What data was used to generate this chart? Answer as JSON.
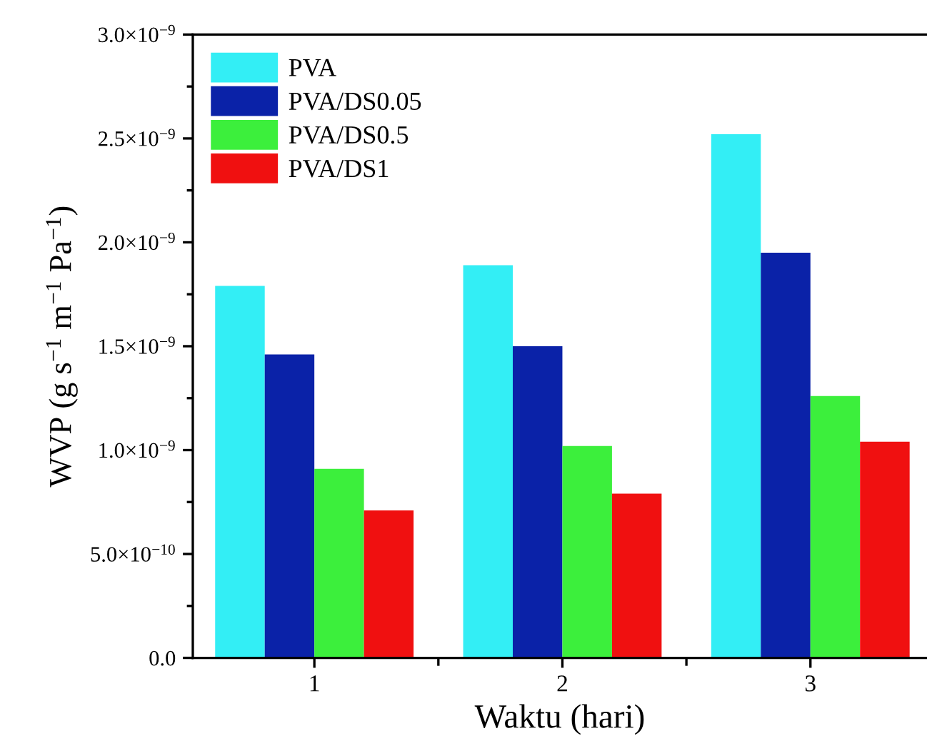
{
  "chart_data": {
    "type": "bar",
    "xlabel": "Waktu (hari)",
    "ylabel": "WVP (g s$^{−1}$ m$^{−1}$ Pa$^{−1}$)",
    "categories": [
      "1",
      "2",
      "3"
    ],
    "series": [
      {
        "name": "PVA",
        "color": "#33eef5",
        "values": [
          1.79e-09,
          1.89e-09,
          2.52e-09
        ]
      },
      {
        "name": "PVA/DS0.05",
        "color": "#0a22a8",
        "values": [
          1.46e-09,
          1.5e-09,
          1.95e-09
        ]
      },
      {
        "name": "PVA/DS0.5",
        "color": "#3cef3c",
        "values": [
          9.1e-10,
          1.02e-09,
          1.26e-09
        ]
      },
      {
        "name": "PVA/DS1",
        "color": "#f01010",
        "values": [
          7.1e-10,
          7.9e-10,
          1.04e-09
        ]
      }
    ],
    "ylim": [
      0,
      3e-09
    ],
    "yticks": [
      {
        "value": 0,
        "label": "0.0"
      },
      {
        "value": 2.5e-10,
        "label": null
      },
      {
        "value": 5e-10,
        "label": "5.0×10$^{−10}$"
      },
      {
        "value": 7.5e-10,
        "label": null
      },
      {
        "value": 1e-09,
        "label": "1.0×10$^{−9}$"
      },
      {
        "value": 1.25e-09,
        "label": null
      },
      {
        "value": 1.5e-09,
        "label": "1.5×10$^{−9}$"
      },
      {
        "value": 1.75e-09,
        "label": null
      },
      {
        "value": 2e-09,
        "label": "2.0×10$^{−9}$"
      },
      {
        "value": 2.25e-09,
        "label": null
      },
      {
        "value": 2.5e-09,
        "label": "2.5×10$^{−9}$"
      },
      {
        "value": 2.75e-09,
        "label": null
      },
      {
        "value": 3e-09,
        "label": "3.0×10$^{−9}$"
      }
    ],
    "grid": false,
    "legend": "top left"
  }
}
